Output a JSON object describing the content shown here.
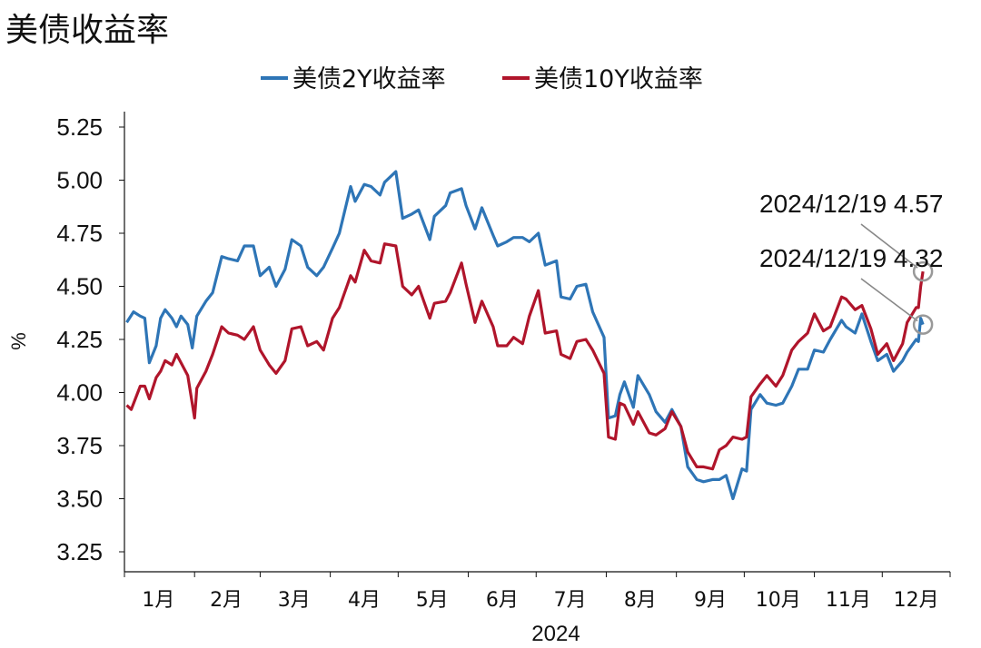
{
  "chart_data": {
    "type": "line",
    "title": "美债收益率",
    "xlabel": "2024",
    "ylabel": "%",
    "ylim": [
      3.25,
      5.25
    ],
    "yticks": [
      "5.25",
      "5.00",
      "4.75",
      "4.50",
      "4.25",
      "4.00",
      "3.75",
      "3.50",
      "3.25"
    ],
    "months": [
      "1月",
      "2月",
      "3月",
      "4月",
      "5月",
      "6月",
      "7月",
      "8月",
      "9月",
      "10月",
      "11月",
      "12月"
    ],
    "x_range": [
      "2024-01-01",
      "2024-12-31"
    ],
    "grid": false,
    "legend_position": "top-center",
    "series": [
      {
        "name": "美债2Y收益率",
        "color": "#2e75b6",
        "points": [
          [
            "2024-01-02",
            4.33
          ],
          [
            "2024-01-05",
            4.38
          ],
          [
            "2024-01-08",
            4.36
          ],
          [
            "2024-01-10",
            4.35
          ],
          [
            "2024-01-12",
            4.14
          ],
          [
            "2024-01-15",
            4.22
          ],
          [
            "2024-01-17",
            4.35
          ],
          [
            "2024-01-19",
            4.39
          ],
          [
            "2024-01-22",
            4.35
          ],
          [
            "2024-01-24",
            4.31
          ],
          [
            "2024-01-26",
            4.36
          ],
          [
            "2024-01-29",
            4.32
          ],
          [
            "2024-01-31",
            4.21
          ],
          [
            "2024-02-02",
            4.36
          ],
          [
            "2024-02-06",
            4.43
          ],
          [
            "2024-02-09",
            4.47
          ],
          [
            "2024-02-13",
            4.64
          ],
          [
            "2024-02-16",
            4.63
          ],
          [
            "2024-02-20",
            4.62
          ],
          [
            "2024-02-23",
            4.69
          ],
          [
            "2024-02-27",
            4.69
          ],
          [
            "2024-03-01",
            4.55
          ],
          [
            "2024-03-05",
            4.59
          ],
          [
            "2024-03-08",
            4.5
          ],
          [
            "2024-03-12",
            4.58
          ],
          [
            "2024-03-15",
            4.72
          ],
          [
            "2024-03-19",
            4.69
          ],
          [
            "2024-03-22",
            4.59
          ],
          [
            "2024-03-26",
            4.55
          ],
          [
            "2024-03-29",
            4.59
          ],
          [
            "2024-04-02",
            4.68
          ],
          [
            "2024-04-05",
            4.75
          ],
          [
            "2024-04-10",
            4.97
          ],
          [
            "2024-04-12",
            4.9
          ],
          [
            "2024-04-16",
            4.98
          ],
          [
            "2024-04-19",
            4.97
          ],
          [
            "2024-04-23",
            4.93
          ],
          [
            "2024-04-25",
            4.99
          ],
          [
            "2024-04-30",
            5.04
          ],
          [
            "2024-05-03",
            4.82
          ],
          [
            "2024-05-07",
            4.84
          ],
          [
            "2024-05-10",
            4.86
          ],
          [
            "2024-05-15",
            4.72
          ],
          [
            "2024-05-17",
            4.83
          ],
          [
            "2024-05-22",
            4.88
          ],
          [
            "2024-05-24",
            4.94
          ],
          [
            "2024-05-29",
            4.96
          ],
          [
            "2024-05-31",
            4.88
          ],
          [
            "2024-06-04",
            4.77
          ],
          [
            "2024-06-07",
            4.87
          ],
          [
            "2024-06-12",
            4.74
          ],
          [
            "2024-06-14",
            4.69
          ],
          [
            "2024-06-18",
            4.71
          ],
          [
            "2024-06-21",
            4.73
          ],
          [
            "2024-06-25",
            4.73
          ],
          [
            "2024-06-28",
            4.71
          ],
          [
            "2024-07-02",
            4.75
          ],
          [
            "2024-07-05",
            4.6
          ],
          [
            "2024-07-10",
            4.62
          ],
          [
            "2024-07-12",
            4.45
          ],
          [
            "2024-07-16",
            4.44
          ],
          [
            "2024-07-19",
            4.5
          ],
          [
            "2024-07-23",
            4.51
          ],
          [
            "2024-07-26",
            4.38
          ],
          [
            "2024-07-31",
            4.26
          ],
          [
            "2024-08-02",
            3.88
          ],
          [
            "2024-08-05",
            3.89
          ],
          [
            "2024-08-07",
            3.99
          ],
          [
            "2024-08-09",
            4.05
          ],
          [
            "2024-08-13",
            3.93
          ],
          [
            "2024-08-15",
            4.08
          ],
          [
            "2024-08-20",
            3.99
          ],
          [
            "2024-08-23",
            3.91
          ],
          [
            "2024-08-27",
            3.86
          ],
          [
            "2024-08-30",
            3.92
          ],
          [
            "2024-09-03",
            3.84
          ],
          [
            "2024-09-06",
            3.65
          ],
          [
            "2024-09-10",
            3.59
          ],
          [
            "2024-09-13",
            3.58
          ],
          [
            "2024-09-17",
            3.59
          ],
          [
            "2024-09-20",
            3.59
          ],
          [
            "2024-09-23",
            3.61
          ],
          [
            "2024-09-26",
            3.5
          ],
          [
            "2024-09-30",
            3.64
          ],
          [
            "2024-10-02",
            3.63
          ],
          [
            "2024-10-04",
            3.92
          ],
          [
            "2024-10-08",
            3.99
          ],
          [
            "2024-10-11",
            3.95
          ],
          [
            "2024-10-15",
            3.94
          ],
          [
            "2024-10-18",
            3.95
          ],
          [
            "2024-10-22",
            4.03
          ],
          [
            "2024-10-25",
            4.11
          ],
          [
            "2024-10-29",
            4.11
          ],
          [
            "2024-11-01",
            4.2
          ],
          [
            "2024-11-05",
            4.19
          ],
          [
            "2024-11-08",
            4.25
          ],
          [
            "2024-11-13",
            4.34
          ],
          [
            "2024-11-15",
            4.31
          ],
          [
            "2024-11-19",
            4.28
          ],
          [
            "2024-11-22",
            4.37
          ],
          [
            "2024-11-26",
            4.24
          ],
          [
            "2024-11-29",
            4.15
          ],
          [
            "2024-12-03",
            4.18
          ],
          [
            "2024-12-06",
            4.1
          ],
          [
            "2024-12-10",
            4.15
          ],
          [
            "2024-12-12",
            4.19
          ],
          [
            "2024-12-16",
            4.25
          ],
          [
            "2024-12-17",
            4.24
          ],
          [
            "2024-12-18",
            4.35
          ],
          [
            "2024-12-19",
            4.32
          ]
        ]
      },
      {
        "name": "美债10Y收益率",
        "color": "#b0152b",
        "points": [
          [
            "2024-01-02",
            3.94
          ],
          [
            "2024-01-04",
            3.92
          ],
          [
            "2024-01-08",
            4.03
          ],
          [
            "2024-01-10",
            4.03
          ],
          [
            "2024-01-12",
            3.97
          ],
          [
            "2024-01-15",
            4.07
          ],
          [
            "2024-01-17",
            4.1
          ],
          [
            "2024-01-19",
            4.15
          ],
          [
            "2024-01-22",
            4.13
          ],
          [
            "2024-01-24",
            4.18
          ],
          [
            "2024-01-26",
            4.14
          ],
          [
            "2024-01-29",
            4.08
          ],
          [
            "2024-02-01",
            3.88
          ],
          [
            "2024-02-02",
            4.02
          ],
          [
            "2024-02-06",
            4.1
          ],
          [
            "2024-02-09",
            4.18
          ],
          [
            "2024-02-13",
            4.31
          ],
          [
            "2024-02-16",
            4.28
          ],
          [
            "2024-02-20",
            4.27
          ],
          [
            "2024-02-23",
            4.25
          ],
          [
            "2024-02-27",
            4.31
          ],
          [
            "2024-03-01",
            4.2
          ],
          [
            "2024-03-05",
            4.13
          ],
          [
            "2024-03-08",
            4.09
          ],
          [
            "2024-03-12",
            4.15
          ],
          [
            "2024-03-15",
            4.3
          ],
          [
            "2024-03-19",
            4.31
          ],
          [
            "2024-03-22",
            4.22
          ],
          [
            "2024-03-26",
            4.24
          ],
          [
            "2024-03-29",
            4.2
          ],
          [
            "2024-04-02",
            4.35
          ],
          [
            "2024-04-05",
            4.4
          ],
          [
            "2024-04-10",
            4.55
          ],
          [
            "2024-04-12",
            4.52
          ],
          [
            "2024-04-16",
            4.67
          ],
          [
            "2024-04-19",
            4.62
          ],
          [
            "2024-04-23",
            4.61
          ],
          [
            "2024-04-25",
            4.7
          ],
          [
            "2024-04-30",
            4.69
          ],
          [
            "2024-05-03",
            4.5
          ],
          [
            "2024-05-07",
            4.46
          ],
          [
            "2024-05-10",
            4.5
          ],
          [
            "2024-05-15",
            4.35
          ],
          [
            "2024-05-17",
            4.42
          ],
          [
            "2024-05-22",
            4.43
          ],
          [
            "2024-05-24",
            4.47
          ],
          [
            "2024-05-29",
            4.61
          ],
          [
            "2024-05-31",
            4.51
          ],
          [
            "2024-06-04",
            4.33
          ],
          [
            "2024-06-07",
            4.43
          ],
          [
            "2024-06-12",
            4.31
          ],
          [
            "2024-06-14",
            4.22
          ],
          [
            "2024-06-18",
            4.22
          ],
          [
            "2024-06-21",
            4.26
          ],
          [
            "2024-06-25",
            4.23
          ],
          [
            "2024-06-28",
            4.36
          ],
          [
            "2024-07-02",
            4.48
          ],
          [
            "2024-07-05",
            4.28
          ],
          [
            "2024-07-10",
            4.29
          ],
          [
            "2024-07-12",
            4.18
          ],
          [
            "2024-07-16",
            4.16
          ],
          [
            "2024-07-19",
            4.24
          ],
          [
            "2024-07-23",
            4.25
          ],
          [
            "2024-07-26",
            4.2
          ],
          [
            "2024-07-31",
            4.09
          ],
          [
            "2024-08-02",
            3.79
          ],
          [
            "2024-08-05",
            3.78
          ],
          [
            "2024-08-07",
            3.95
          ],
          [
            "2024-08-09",
            3.94
          ],
          [
            "2024-08-13",
            3.85
          ],
          [
            "2024-08-15",
            3.91
          ],
          [
            "2024-08-20",
            3.81
          ],
          [
            "2024-08-23",
            3.8
          ],
          [
            "2024-08-27",
            3.83
          ],
          [
            "2024-08-30",
            3.91
          ],
          [
            "2024-09-03",
            3.84
          ],
          [
            "2024-09-06",
            3.72
          ],
          [
            "2024-09-10",
            3.65
          ],
          [
            "2024-09-13",
            3.65
          ],
          [
            "2024-09-17",
            3.64
          ],
          [
            "2024-09-20",
            3.73
          ],
          [
            "2024-09-23",
            3.75
          ],
          [
            "2024-09-26",
            3.79
          ],
          [
            "2024-09-30",
            3.78
          ],
          [
            "2024-10-02",
            3.79
          ],
          [
            "2024-10-04",
            3.98
          ],
          [
            "2024-10-08",
            4.04
          ],
          [
            "2024-10-11",
            4.08
          ],
          [
            "2024-10-15",
            4.03
          ],
          [
            "2024-10-18",
            4.08
          ],
          [
            "2024-10-22",
            4.2
          ],
          [
            "2024-10-25",
            4.24
          ],
          [
            "2024-10-29",
            4.28
          ],
          [
            "2024-11-01",
            4.37
          ],
          [
            "2024-11-05",
            4.29
          ],
          [
            "2024-11-08",
            4.31
          ],
          [
            "2024-11-13",
            4.45
          ],
          [
            "2024-11-15",
            4.44
          ],
          [
            "2024-11-19",
            4.39
          ],
          [
            "2024-11-22",
            4.41
          ],
          [
            "2024-11-26",
            4.3
          ],
          [
            "2024-11-29",
            4.18
          ],
          [
            "2024-12-03",
            4.23
          ],
          [
            "2024-12-06",
            4.15
          ],
          [
            "2024-12-10",
            4.23
          ],
          [
            "2024-12-12",
            4.33
          ],
          [
            "2024-12-16",
            4.4
          ],
          [
            "2024-12-17",
            4.4
          ],
          [
            "2024-12-18",
            4.5
          ],
          [
            "2024-12-19",
            4.57
          ]
        ]
      }
    ],
    "annotations": [
      {
        "text": "2024/12/19 4.57",
        "date": "2024-12-19",
        "value": 4.57
      },
      {
        "text": "2024/12/19 4.32",
        "date": "2024-12-19",
        "value": 4.32
      }
    ]
  }
}
